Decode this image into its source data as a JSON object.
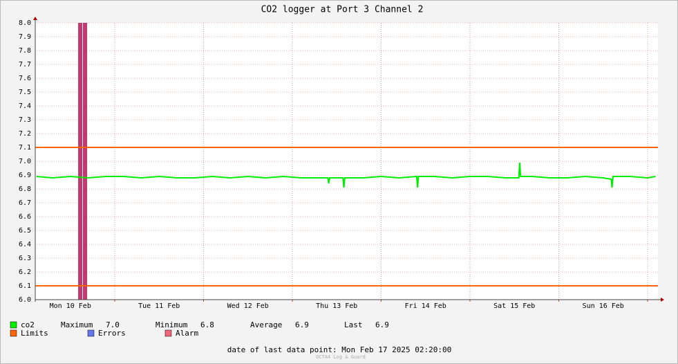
{
  "chart_data": {
    "type": "line",
    "title": "CO2 logger at Port 3 Channel 2",
    "xlim": [
      0.105,
      7.117
    ],
    "xticks": [
      {
        "value": 0.5,
        "label": "Mon 10 Feb"
      },
      {
        "value": 1.5,
        "label": "Tue 11 Feb"
      },
      {
        "value": 2.5,
        "label": "Wed 12 Feb"
      },
      {
        "value": 3.5,
        "label": "Thu 13 Feb"
      },
      {
        "value": 4.5,
        "label": "Fri 14 Feb"
      },
      {
        "value": 5.5,
        "label": "Sat 15 Feb"
      },
      {
        "value": 6.5,
        "label": "Sun 16 Feb"
      }
    ],
    "xgrid_major": [
      1,
      2,
      3,
      4,
      5,
      6,
      7
    ],
    "ylim": [
      6.0,
      8.0
    ],
    "yticks": [
      {
        "value": 6.0,
        "label": "6.0"
      },
      6.1,
      6.2,
      6.3,
      6.4,
      6.5,
      6.6,
      6.7,
      6.8,
      6.9,
      {
        "value": 7.0,
        "label": "7.0"
      },
      7.1,
      7.2,
      7.3,
      7.4,
      7.5,
      7.6,
      7.7,
      7.8,
      7.9,
      {
        "value": 8.0,
        "label": "8.0"
      }
    ],
    "grid": true,
    "x": [
      0.12,
      0.3,
      0.5,
      0.7,
      0.9,
      1.1,
      1.3,
      1.5,
      1.7,
      1.9,
      2.1,
      2.3,
      2.5,
      2.7,
      2.9,
      3.1,
      3.3,
      3.4,
      3.41,
      3.42,
      3.5,
      3.57,
      3.58,
      3.59,
      3.8,
      4.0,
      4.2,
      4.4,
      4.41,
      4.42,
      4.6,
      4.8,
      5.0,
      5.2,
      5.4,
      5.55,
      5.56,
      5.57,
      5.7,
      5.9,
      6.1,
      6.3,
      6.5,
      6.59,
      6.6,
      6.61,
      6.8,
      7.0,
      7.09
    ],
    "series": [
      {
        "name": "co2",
        "color": "#00ee00",
        "values": [
          6.89,
          6.88,
          6.89,
          6.88,
          6.89,
          6.89,
          6.88,
          6.89,
          6.88,
          6.88,
          6.89,
          6.88,
          6.89,
          6.88,
          6.89,
          6.88,
          6.88,
          6.88,
          6.84,
          6.88,
          6.88,
          6.88,
          6.81,
          6.88,
          6.88,
          6.89,
          6.88,
          6.89,
          6.81,
          6.89,
          6.89,
          6.88,
          6.89,
          6.89,
          6.88,
          6.88,
          6.99,
          6.89,
          6.89,
          6.88,
          6.88,
          6.89,
          6.88,
          6.87,
          6.81,
          6.89,
          6.89,
          6.88,
          6.89
        ],
        "stats": [
          {
            "name": "Maximum",
            "text": "7.0"
          },
          {
            "name": "Minimum",
            "text": "6.8"
          },
          {
            "name": "Average",
            "text": "6.9"
          },
          {
            "name": "Last",
            "text": "6.9"
          }
        ]
      }
    ],
    "limits": {
      "name": "Limits",
      "color": "#ff6600",
      "values": [
        7.1,
        6.1
      ]
    },
    "errors": {
      "name": "Errors",
      "color": "#6677ee"
    },
    "alarm": {
      "name": "Alarm",
      "color": "#ee6677",
      "bar_color": "#c03a72",
      "periods": [
        [
          0.588,
          0.635
        ],
        [
          0.642,
          0.689
        ]
      ]
    },
    "footer": "date of last data point:  Mon Feb 17 2025 02:20:00",
    "watermark": "OCTA4 Log & Guard"
  }
}
